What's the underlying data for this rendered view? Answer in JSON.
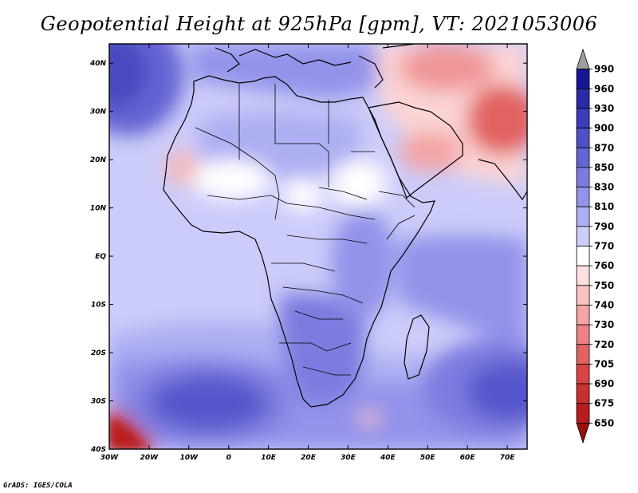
{
  "title": "Geopotential Height at 925hPa [gpm], VT: 2021053006",
  "footer": "GrADS: IGES/COLA",
  "map": {
    "lon_labels": [
      "30W",
      "20W",
      "10W",
      "0",
      "10E",
      "20E",
      "30E",
      "40E",
      "50E",
      "60E",
      "70E"
    ],
    "lat_labels": [
      "40N",
      "30N",
      "20N",
      "10N",
      "EQ",
      "10S",
      "20S",
      "30S",
      "40S"
    ],
    "lon_range": [
      -30,
      75
    ],
    "lat_range": [
      -40,
      44
    ]
  },
  "colorbar": {
    "labels": [
      "990",
      "960",
      "930",
      "900",
      "870",
      "850",
      "830",
      "810",
      "790",
      "770",
      "760",
      "750",
      "740",
      "730",
      "720",
      "705",
      "690",
      "675",
      "650"
    ],
    "colors": [
      "#9e9e9e",
      "#161693",
      "#2a2aa9",
      "#3c3cbb",
      "#4f4fc8",
      "#6464d4",
      "#7b7be0",
      "#9393ea",
      "#aeaef3",
      "#ccccfa",
      "#ffffff",
      "#fde0e0",
      "#f9c4c4",
      "#f4a4a4",
      "#ec8282",
      "#e26262",
      "#d84444",
      "#c83030",
      "#b81d1d",
      "#9a0f0f"
    ]
  }
}
